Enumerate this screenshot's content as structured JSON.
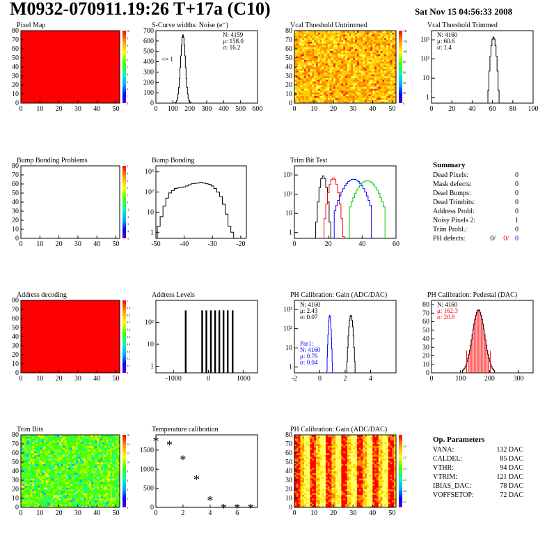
{
  "header": {
    "title": "M0932-070911.19:26 T+17a (C10)",
    "date": "Sat Nov 15 04:56:33 2008"
  },
  "colors": {
    "red": "#ff0000",
    "blue": "#0000ff",
    "green": "#00cc00",
    "black": "#000000"
  },
  "summary": {
    "title": "Summary",
    "rows": [
      {
        "label": "Dead Pixels:",
        "value": "0"
      },
      {
        "label": "Mask defects:",
        "value": "0"
      },
      {
        "label": "Dead Bumps:",
        "value": "0"
      },
      {
        "label": "Dead Trimbits:",
        "value": "0"
      },
      {
        "label": "Address Probl:",
        "value": "0"
      },
      {
        "label": "Noisy Pixels 2:",
        "value": "1"
      },
      {
        "label": "Trim Probl.:",
        "value": "0"
      }
    ],
    "ph_defects": {
      "label": "PH defects:",
      "v1": "0/",
      "v2": "0/",
      "v3": "0"
    }
  },
  "op_params": {
    "title": "Op. Parameters",
    "rows": [
      {
        "label": "VANA:",
        "value": "132 DAC"
      },
      {
        "label": "CALDEL:",
        "value": "85 DAC"
      },
      {
        "label": "VTHR:",
        "value": "94 DAC"
      },
      {
        "label": "VTRIM:",
        "value": "121 DAC"
      },
      {
        "label": "IBIAS_DAC:",
        "value": "78 DAC"
      },
      {
        "label": "VOFFSETOP:",
        "value": "72 DAC"
      }
    ]
  },
  "chart_data": [
    {
      "id": "pixel-map",
      "type": "heatmap",
      "title": "Pixel Map",
      "xlim": [
        0,
        52
      ],
      "ylim": [
        0,
        80
      ],
      "xticks": [
        0,
        10,
        20,
        30,
        40,
        50
      ],
      "yticks": [
        0,
        10,
        20,
        30,
        40,
        50,
        60,
        70,
        80
      ],
      "fill": "uniform-max",
      "z_range": [
        0,
        10
      ],
      "z_ticks": [
        0,
        1,
        2,
        3,
        4,
        5,
        6,
        7,
        8,
        9,
        10
      ],
      "z_labels": [
        "0",
        "1",
        "2",
        "3",
        "4",
        "5",
        "6",
        "7",
        "8",
        "9",
        "10"
      ]
    },
    {
      "id": "scurve-noise",
      "type": "line",
      "title": "S-Curve widths: Noise (e⁻)",
      "xlim": [
        0,
        600
      ],
      "ylim": [
        0,
        700
      ],
      "xticks": [
        0,
        100,
        200,
        300,
        400,
        500,
        600
      ],
      "yticks": [
        0,
        100,
        200,
        300,
        400,
        500,
        600,
        700
      ],
      "stats": [
        "N: 4159",
        "μ: 158.0",
        "σ: 16.2"
      ],
      "annotation": "<= 1",
      "series": [
        {
          "color": "black",
          "gaussian": {
            "mean": 160,
            "sigma": 14,
            "peak": 660,
            "bins": [
              100,
              230
            ],
            "step": 4
          }
        }
      ]
    },
    {
      "id": "vcal-untrimmed",
      "type": "heatmap",
      "title": "Vcal Threshold Untrimmed",
      "xlim": [
        0,
        52
      ],
      "ylim": [
        0,
        80
      ],
      "xticks": [
        0,
        10,
        20,
        30,
        40,
        50
      ],
      "yticks": [
        0,
        10,
        20,
        30,
        40,
        50,
        60,
        70,
        80
      ],
      "fill": "noise-yellow-red",
      "z_range": [
        0,
        140
      ],
      "z_ticks": [
        0,
        20,
        40,
        60,
        80,
        100,
        120,
        140
      ],
      "z_labels": [
        "0",
        "20",
        "40",
        "60",
        "80",
        "100",
        "120",
        "140"
      ]
    },
    {
      "id": "vcal-trimmed",
      "type": "line",
      "title": "Vcal Threshold Trimmed",
      "xlim": [
        0,
        100
      ],
      "log": true,
      "ylog_range": [
        0.5,
        3000
      ],
      "xticks": [
        0,
        20,
        40,
        60,
        80,
        100
      ],
      "yticks_log": [
        1,
        10,
        100,
        1000
      ],
      "ytick_labels": [
        "1",
        "10",
        "10²",
        "10³"
      ],
      "stats": [
        "N: 4160",
        "μ: 60.6",
        "σ: 1.4"
      ],
      "series": [
        {
          "color": "black",
          "gaussian": {
            "mean": 61,
            "sigma": 1.4,
            "peak": 1400,
            "bins": [
              52,
              68
            ],
            "step": 1
          }
        }
      ]
    },
    {
      "id": "bump-problems",
      "type": "heatmap",
      "title": "Bump Bonding Problems",
      "xlim": [
        0,
        52
      ],
      "ylim": [
        0,
        80
      ],
      "xticks": [
        0,
        10,
        20,
        30,
        40,
        50
      ],
      "yticks": [
        0,
        10,
        20,
        30,
        40,
        50,
        60,
        70,
        80
      ],
      "fill": "empty",
      "z_range": [
        -5,
        5
      ],
      "z_ticks": [
        -5,
        -4,
        -3,
        -2,
        -1,
        0,
        1,
        2,
        3,
        4,
        5
      ],
      "z_labels": [
        "-5",
        "-4",
        "-3",
        "-2",
        "-1",
        "0",
        "1",
        "2",
        "3",
        "4",
        "5"
      ]
    },
    {
      "id": "bump-bonding",
      "type": "line",
      "title": "Bump Bonding",
      "xlim": [
        -50,
        -18
      ],
      "log": true,
      "ylog_range": [
        0.5,
        2000
      ],
      "xticks": [
        -50,
        -40,
        -30,
        -20
      ],
      "yticks_log": [
        1,
        10,
        100,
        1000
      ],
      "ytick_labels": [
        "1",
        "10",
        "10²",
        "10³"
      ],
      "series": [
        {
          "color": "black",
          "steps": {
            "x0": -49,
            "dx": 1,
            "y": [
              2,
              6,
              20,
              50,
              90,
              120,
              150,
              160,
              170,
              180,
              200,
              230,
              260,
              270,
              280,
              300,
              280,
              260,
              240,
              200,
              150,
              100,
              60,
              25,
              8,
              2,
              1
            ]
          }
        }
      ]
    },
    {
      "id": "trim-bit-test",
      "type": "line",
      "title": "Trim Bit Test",
      "xlim": [
        0,
        60
      ],
      "log": true,
      "ylog_range": [
        0.5,
        3000
      ],
      "xticks": [
        0,
        20,
        40,
        60
      ],
      "yticks_log": [
        1,
        10,
        100,
        1000
      ],
      "ytick_labels": [
        "1",
        "10",
        "10²",
        "10³"
      ],
      "series": [
        {
          "color": "black",
          "gaussian": {
            "mean": 17,
            "sigma": 1.2,
            "peak": 900,
            "bins": [
              12,
              22
            ],
            "step": 1
          }
        },
        {
          "color": "red",
          "gaussian": {
            "mean": 23,
            "sigma": 1.6,
            "peak": 700,
            "bins": [
              18,
              29
            ],
            "step": 1
          }
        },
        {
          "color": "blue",
          "gaussian": {
            "mean": 35,
            "sigma": 4,
            "peak": 600,
            "bins": [
              24,
              45
            ],
            "step": 1
          }
        },
        {
          "color": "green",
          "gaussian": {
            "mean": 43,
            "sigma": 4,
            "peak": 500,
            "bins": [
              33,
              53
            ],
            "step": 1
          }
        }
      ]
    },
    {
      "id": "address-decoding",
      "type": "heatmap",
      "title": "Address decoding",
      "xlim": [
        0,
        52
      ],
      "ylim": [
        0,
        80
      ],
      "xticks": [
        0,
        10,
        20,
        30,
        40,
        50
      ],
      "yticks": [
        0,
        10,
        20,
        30,
        40,
        50,
        60,
        70,
        80
      ],
      "fill": "uniform-max",
      "z_range": [
        0,
        1
      ],
      "z_ticks": [
        0,
        0.1,
        0.2,
        0.3,
        0.4,
        0.5,
        0.6,
        0.7,
        0.8,
        0.9,
        1
      ],
      "z_labels": [
        "0",
        "0.1",
        "0.2",
        "0.3",
        "0.4",
        "0.5",
        "0.6",
        "0.7",
        "0.8",
        "0.9",
        "1"
      ]
    },
    {
      "id": "address-levels",
      "type": "bar",
      "title": "Address Levels",
      "xlim": [
        -1500,
        1400
      ],
      "log": true,
      "ylog_range": [
        0.5,
        1000
      ],
      "xticks": [
        -1000,
        0,
        1000
      ],
      "yticks_log": [
        1,
        10,
        100
      ],
      "ytick_labels": [
        "1",
        "10",
        "10²"
      ],
      "bar_positions": [
        -650,
        -180,
        -60,
        70,
        190,
        310,
        430,
        550,
        690
      ],
      "bar_height": 350
    },
    {
      "id": "ph-gain",
      "type": "line",
      "title": "PH Calibration: Gain (ADC/DAC)",
      "xlim": [
        -2,
        6
      ],
      "log": true,
      "ylog_range": [
        0.5,
        3000
      ],
      "xticks": [
        -2,
        0,
        2,
        4
      ],
      "yticks_log": [
        1,
        10,
        100,
        1000
      ],
      "ytick_labels": [
        "1",
        "10",
        "10²",
        "10³"
      ],
      "stats": [
        "N: 4160",
        "μ: 2.43",
        "σ: 0.07"
      ],
      "stats2": [
        "Par1:",
        "N: 4160",
        "μ: 0.76",
        "σ: 0.04"
      ],
      "series": [
        {
          "color": "black",
          "gaussian": {
            "mean": 2.45,
            "sigma": 0.09,
            "peak": 500,
            "bins": [
              2.05,
              2.85
            ],
            "step": 0.05
          }
        },
        {
          "color": "blue",
          "gaussian": {
            "mean": 0.78,
            "sigma": 0.06,
            "peak": 500,
            "bins": [
              0.5,
              1.05
            ],
            "step": 0.03
          }
        }
      ]
    },
    {
      "id": "ph-pedestal",
      "type": "line",
      "title": "PH Calibration: Pedestal (DAC)",
      "xlim": [
        0,
        350
      ],
      "ylim": [
        0,
        85
      ],
      "xticks": [
        0,
        100,
        200,
        300
      ],
      "yticks": [
        0,
        10,
        20,
        30,
        40,
        50,
        60,
        70,
        80
      ],
      "stats": [
        "N: 4160"
      ],
      "stats_red": [
        "μ: 162.3",
        "σ: 20.8"
      ],
      "markers_red_x": [
        121,
        203
      ],
      "series": [
        {
          "color": "black",
          "gaussian": {
            "mean": 162,
            "sigma": 21,
            "peak": 74,
            "bins": [
              108,
              216
            ],
            "step": 3
          }
        }
      ]
    },
    {
      "id": "trim-bits",
      "type": "heatmap",
      "title": "Trim Bits",
      "xlim": [
        0,
        52
      ],
      "ylim": [
        0,
        80
      ],
      "xticks": [
        0,
        10,
        20,
        30,
        40,
        50
      ],
      "yticks": [
        0,
        10,
        20,
        30,
        40,
        50,
        60,
        70,
        80
      ],
      "fill": "noise-green",
      "z_range": [
        0,
        16
      ],
      "z_ticks": [
        0,
        2,
        4,
        6,
        8,
        10,
        12,
        14,
        16
      ],
      "z_labels": [
        "0",
        "2",
        "4",
        "6",
        "8",
        "10",
        "12",
        "14",
        "16"
      ]
    },
    {
      "id": "temperature-calibration",
      "type": "scatter",
      "title": "Temperature calibration",
      "xlim": [
        0,
        7.5
      ],
      "ylim": [
        0,
        1900
      ],
      "xticks": [
        0,
        2,
        4,
        6
      ],
      "yticks": [
        0,
        500,
        1000,
        1500
      ],
      "marker": "*",
      "x": [
        0,
        1,
        2,
        3,
        4,
        5,
        6,
        7
      ],
      "y": [
        1750,
        1650,
        1270,
        750,
        200,
        0,
        0,
        0
      ]
    },
    {
      "id": "ph-gain-map",
      "type": "heatmap",
      "title": "PH Calibration: Gain (ADC/DAC)",
      "xlim": [
        0,
        52
      ],
      "ylim": [
        0,
        80
      ],
      "xticks": [
        0,
        10,
        20,
        30,
        40,
        50
      ],
      "yticks": [
        0,
        10,
        20,
        30,
        40,
        50,
        60,
        70,
        80
      ],
      "fill": "columns-striped",
      "z_range": [
        2.05,
        2.7
      ],
      "z_ticks": [
        2.1,
        2.2,
        2.3,
        2.4,
        2.5,
        2.6
      ],
      "z_labels": [
        "2.1",
        "2.2",
        "2.3",
        "2.4",
        "2.5",
        "2.6"
      ]
    }
  ]
}
